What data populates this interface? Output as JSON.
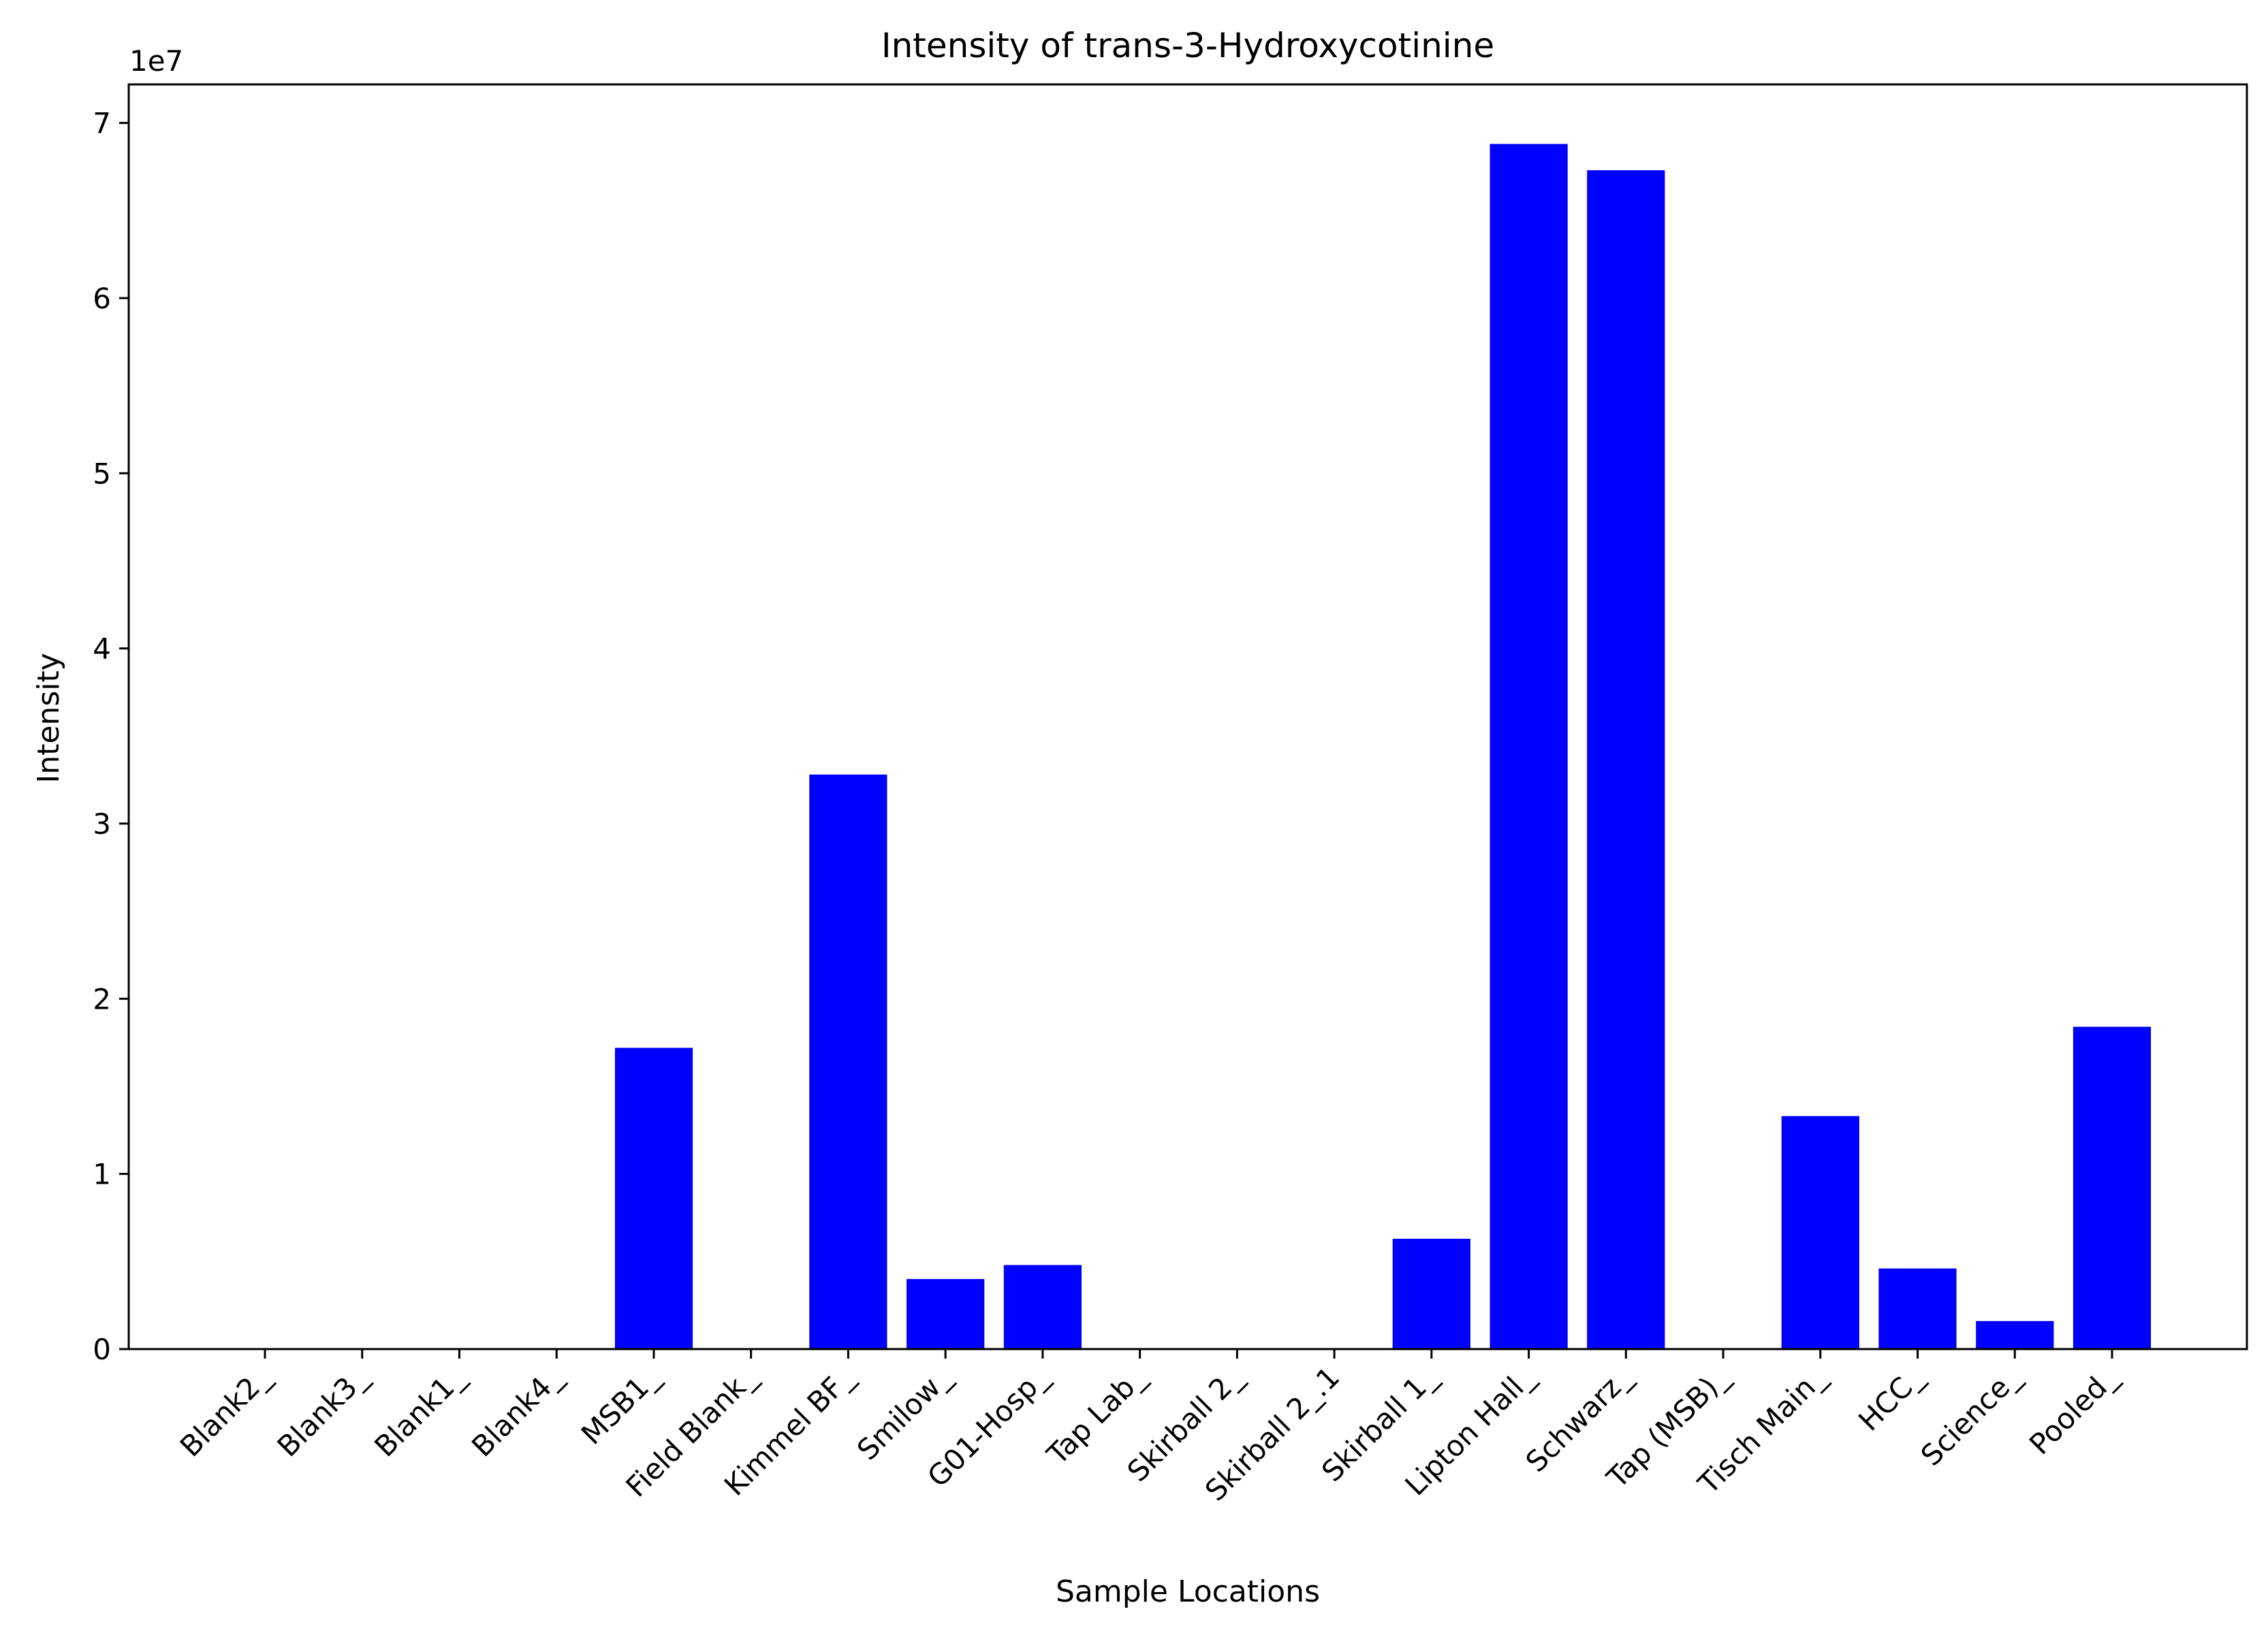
{
  "chart_data": {
    "type": "bar",
    "title": "Intensity of trans-3-Hydroxycotinine",
    "xlabel": "Sample Locations",
    "ylabel": "Intensity",
    "y_offset_label": "1e7",
    "ylim": [
      0,
      72200000
    ],
    "yticks": [
      0,
      10000000,
      20000000,
      30000000,
      40000000,
      50000000,
      60000000,
      70000000
    ],
    "ytick_labels": [
      "0",
      "1",
      "2",
      "3",
      "4",
      "5",
      "6",
      "7"
    ],
    "categories": [
      "Blank2_",
      "Blank3_",
      "Blank1_",
      "Blank4_",
      "MSB1_",
      "Field Blank_",
      "Kimmel BF_",
      "Smilow_",
      "G01-Hosp_",
      "Tap Lab_",
      "Skirball 2_",
      "Skirball 2_.1",
      "Skirball 1_",
      "Lipton Hall_",
      "Schwarz_",
      "Tap (MSB)_",
      "Tisch Main_",
      "HCC_",
      "Science_",
      "Pooled_"
    ],
    "values": [
      0,
      0,
      0,
      0,
      17200000,
      0,
      32800000,
      4000000,
      4800000,
      0,
      0,
      0,
      6300000,
      68800000,
      67300000,
      0,
      13300000,
      4600000,
      1600000,
      18400000
    ],
    "bar_color": "#0000ff",
    "grid": false
  }
}
